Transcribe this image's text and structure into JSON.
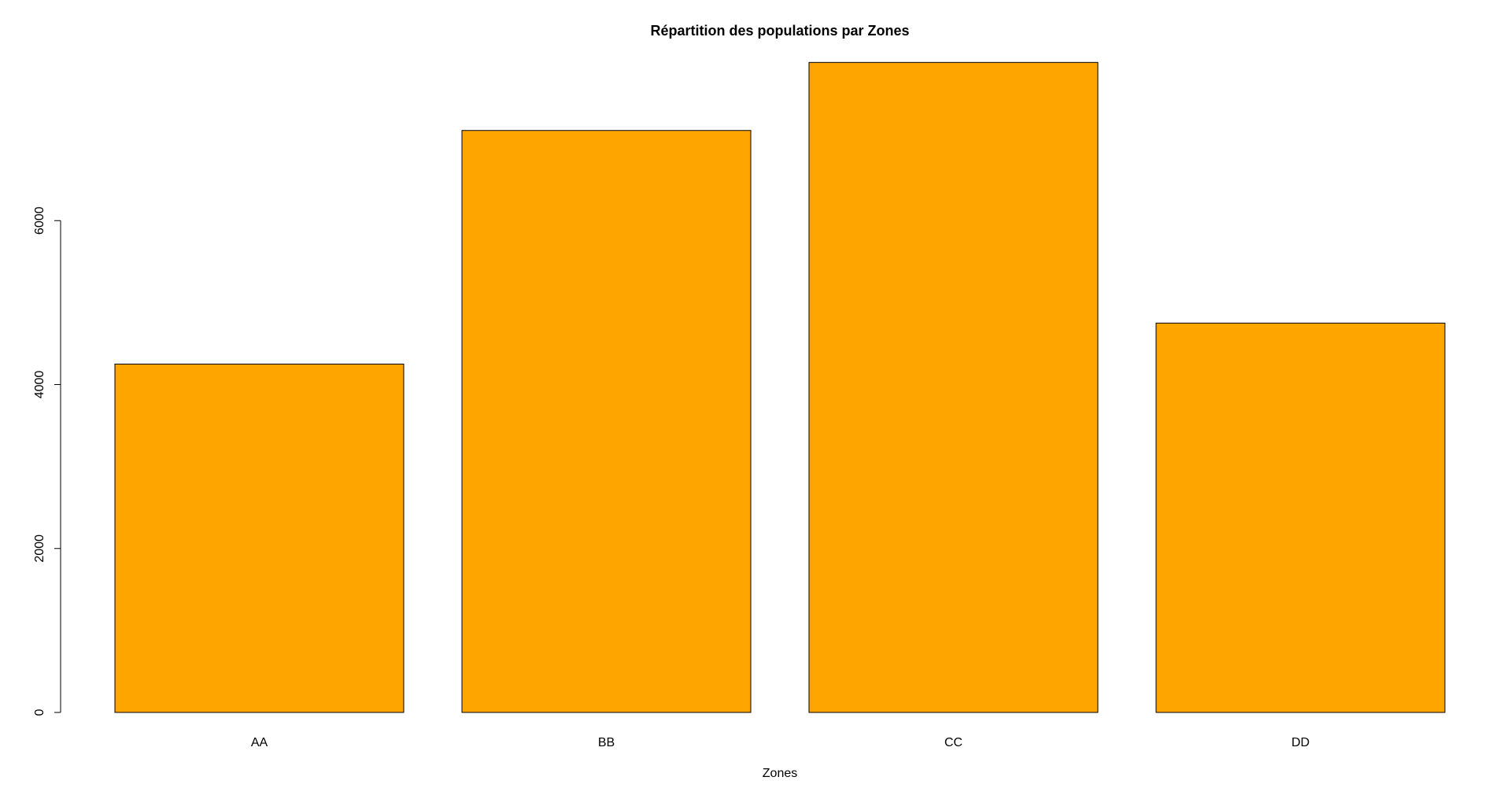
{
  "chart_data": {
    "type": "bar",
    "title": "Répartition des populations par Zones",
    "x_label": "Zones",
    "categories": [
      "AA",
      "BB",
      "CC",
      "DD"
    ],
    "values": [
      4250,
      7100,
      7930,
      4750
    ],
    "color": "#ffa500",
    "ylim": [
      0,
      8250
    ],
    "yticks": [
      0,
      2000,
      4000,
      6000
    ],
    "grid": false
  }
}
